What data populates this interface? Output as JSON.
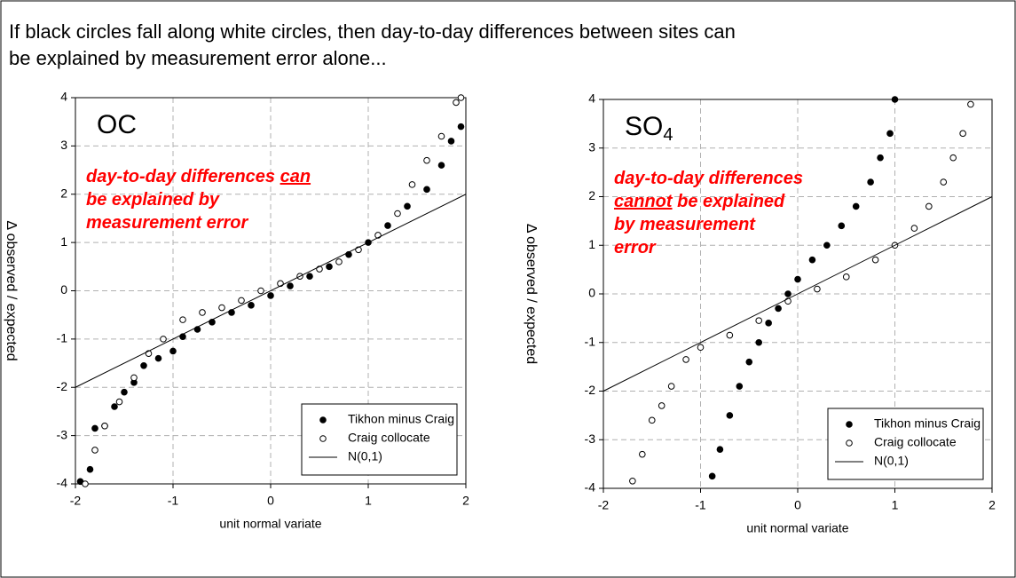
{
  "heading": [
    "If black circles fall along white circles, then day-to-day differences between sites can",
    "be explained by measurement error alone..."
  ],
  "chart_data": [
    {
      "type": "scatter",
      "title": "OC",
      "xlabel": "unit normal variate",
      "ylabel": "Δ observed / expected",
      "annotation": [
        [
          {
            "text": "day-to-day differences ",
            "underline": false
          },
          {
            "text": "can",
            "underline": true
          }
        ],
        [
          {
            "text": "be explained by",
            "underline": false
          }
        ],
        [
          {
            "text": "measurement error",
            "underline": false
          }
        ]
      ],
      "annotation_color": "#ff0000",
      "xlim": [
        -2,
        2
      ],
      "xticks": [
        -2,
        -1,
        0,
        1,
        2
      ],
      "ylim": [
        -4,
        4
      ],
      "yticks": [
        -4,
        -3,
        -2,
        -1,
        0,
        1,
        2,
        3,
        4
      ],
      "grid": true,
      "legend": "lower right",
      "series": [
        {
          "name": "Tikhon minus Craig",
          "marker": "filled",
          "color": "#000000",
          "x": [
            -1.95,
            -1.85,
            -1.8,
            -1.7,
            -1.6,
            -1.5,
            -1.4,
            -1.3,
            -1.15,
            -1.0,
            -0.9,
            -0.75,
            -0.6,
            -0.4,
            -0.2,
            0,
            0.2,
            0.4,
            0.6,
            0.8,
            1.0,
            1.2,
            1.4,
            1.6,
            1.75,
            1.85,
            1.95
          ],
          "values": [
            -3.95,
            -3.7,
            -2.85,
            -2.8,
            -2.4,
            -2.1,
            -1.9,
            -1.55,
            -1.4,
            -1.25,
            -0.95,
            -0.8,
            -0.65,
            -0.45,
            -0.3,
            -0.1,
            0.1,
            0.3,
            0.5,
            0.75,
            1.0,
            1.35,
            1.75,
            2.1,
            2.6,
            3.1,
            3.4
          ]
        },
        {
          "name": "Craig collocate",
          "marker": "open",
          "color": "#000000",
          "x": [
            -1.9,
            -1.8,
            -1.7,
            -1.55,
            -1.4,
            -1.25,
            -1.1,
            -0.9,
            -0.7,
            -0.5,
            -0.3,
            -0.1,
            0.1,
            0.3,
            0.5,
            0.7,
            0.9,
            1.1,
            1.3,
            1.45,
            1.6,
            1.75,
            1.9,
            1.95
          ],
          "values": [
            -4.0,
            -3.3,
            -2.8,
            -2.3,
            -1.8,
            -1.3,
            -1.0,
            -0.6,
            -0.45,
            -0.35,
            -0.2,
            0,
            0.15,
            0.3,
            0.45,
            0.6,
            0.85,
            1.15,
            1.6,
            2.2,
            2.7,
            3.2,
            3.9,
            4.0
          ]
        },
        {
          "name": "N(0,1)",
          "marker": "line",
          "color": "#000000",
          "x": [
            -2,
            2
          ],
          "values": [
            -2,
            2
          ]
        }
      ]
    },
    {
      "type": "scatter",
      "title": "SO",
      "title_subscript": "4",
      "xlabel": "unit normal variate",
      "ylabel": "Δ observed / expected",
      "annotation": [
        [
          {
            "text": "day-to-day differences",
            "underline": false
          }
        ],
        [
          {
            "text": "cannot",
            "underline": true
          },
          {
            "text": " be explained",
            "underline": false
          }
        ],
        [
          {
            "text": "by measurement",
            "underline": false
          }
        ],
        [
          {
            "text": "error",
            "underline": false
          }
        ]
      ],
      "annotation_color": "#ff0000",
      "xlim": [
        -2,
        2
      ],
      "xticks": [
        -2,
        -1,
        0,
        1,
        2
      ],
      "ylim": [
        -4,
        4
      ],
      "yticks": [
        -4,
        -3,
        -2,
        -1,
        0,
        1,
        2,
        3,
        4
      ],
      "grid": true,
      "legend": "lower right",
      "series": [
        {
          "name": "Tikhon minus Craig",
          "marker": "filled",
          "color": "#000000",
          "x": [
            -0.88,
            -0.8,
            -0.7,
            -0.6,
            -0.5,
            -0.4,
            -0.3,
            -0.2,
            -0.1,
            0,
            0.15,
            0.3,
            0.45,
            0.6,
            0.75,
            0.85,
            0.95,
            1.0
          ],
          "values": [
            -3.75,
            -3.2,
            -2.5,
            -1.9,
            -1.4,
            -1.0,
            -0.6,
            -0.3,
            0,
            0.3,
            0.7,
            1.0,
            1.4,
            1.8,
            2.3,
            2.8,
            3.3,
            4.0
          ]
        },
        {
          "name": "Craig collocate",
          "marker": "open",
          "color": "#000000",
          "x": [
            -1.7,
            -1.6,
            -1.5,
            -1.4,
            -1.3,
            -1.15,
            -1.0,
            -0.7,
            -0.4,
            -0.1,
            0.2,
            0.5,
            0.8,
            1.0,
            1.2,
            1.35,
            1.5,
            1.6,
            1.7,
            1.78
          ],
          "values": [
            -3.85,
            -3.3,
            -2.6,
            -2.3,
            -1.9,
            -1.35,
            -1.1,
            -0.85,
            -0.55,
            -0.15,
            0.1,
            0.35,
            0.7,
            1.0,
            1.35,
            1.8,
            2.3,
            2.8,
            3.3,
            3.9
          ]
        },
        {
          "name": "N(0,1)",
          "marker": "line",
          "color": "#000000",
          "x": [
            -2,
            2
          ],
          "values": [
            -2,
            2
          ]
        }
      ]
    }
  ]
}
